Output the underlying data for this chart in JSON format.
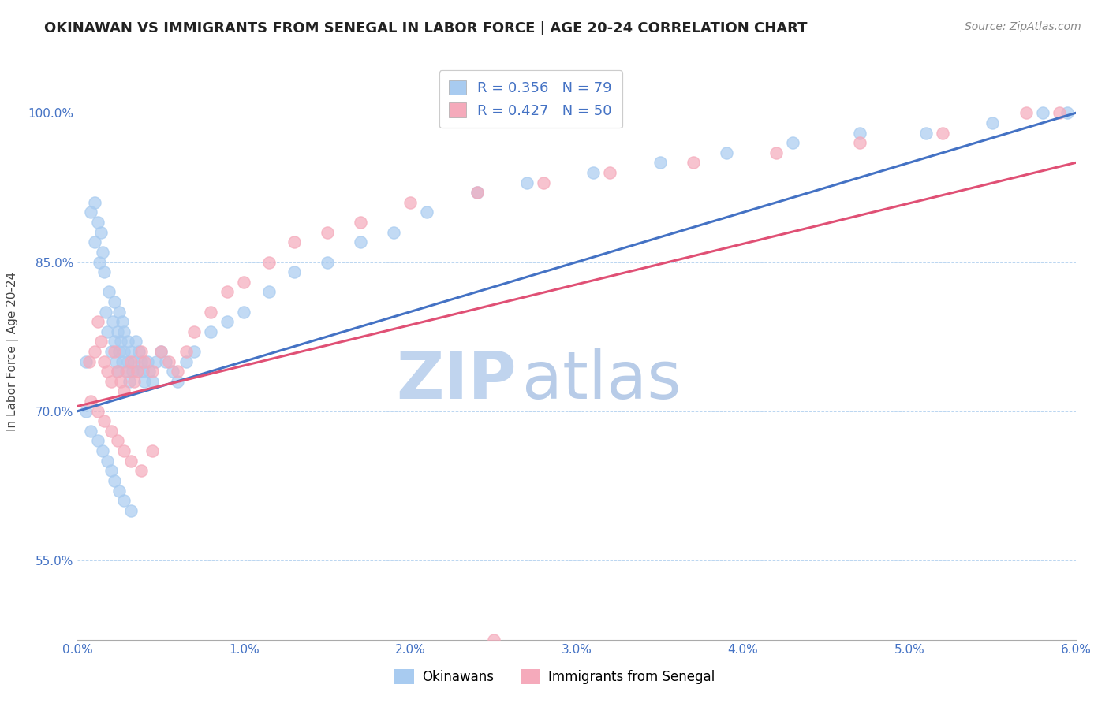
{
  "title": "OKINAWAN VS IMMIGRANTS FROM SENEGAL IN LABOR FORCE | AGE 20-24 CORRELATION CHART",
  "source": "Source: ZipAtlas.com",
  "ylabel": "In Labor Force | Age 20-24",
  "xlim": [
    0.0,
    6.0
  ],
  "ylim": [
    47.0,
    105.0
  ],
  "xlabel_vals": [
    0.0,
    1.0,
    2.0,
    3.0,
    4.0,
    5.0,
    6.0
  ],
  "ylabel_vals": [
    55.0,
    70.0,
    85.0,
    100.0
  ],
  "blue_color": "#A8CBF0",
  "pink_color": "#F5AABB",
  "blue_line_color": "#4472C4",
  "pink_line_color": "#E05075",
  "legend_R_blue": "R = 0.356",
  "legend_N_blue": "N = 79",
  "legend_R_pink": "R = 0.427",
  "legend_N_pink": "N = 50",
  "legend_label_blue": "Okinawans",
  "legend_label_pink": "Immigrants from Senegal",
  "watermark_zip_color": "#C0D4EE",
  "watermark_atlas_color": "#B8CCE8",
  "blue_trend": [
    70.0,
    100.0
  ],
  "pink_trend": [
    70.5,
    95.0
  ],
  "blue_x": [
    0.05,
    0.08,
    0.1,
    0.1,
    0.12,
    0.13,
    0.14,
    0.15,
    0.16,
    0.17,
    0.18,
    0.19,
    0.2,
    0.21,
    0.22,
    0.22,
    0.23,
    0.24,
    0.24,
    0.25,
    0.25,
    0.26,
    0.27,
    0.27,
    0.28,
    0.28,
    0.29,
    0.3,
    0.3,
    0.31,
    0.32,
    0.33,
    0.34,
    0.35,
    0.36,
    0.37,
    0.38,
    0.39,
    0.4,
    0.42,
    0.43,
    0.45,
    0.47,
    0.5,
    0.53,
    0.57,
    0.6,
    0.65,
    0.7,
    0.8,
    0.9,
    1.0,
    1.15,
    1.3,
    1.5,
    1.7,
    1.9,
    2.1,
    2.4,
    2.7,
    3.1,
    3.5,
    3.9,
    4.3,
    4.7,
    5.1,
    5.5,
    5.8,
    5.95,
    0.05,
    0.08,
    0.12,
    0.15,
    0.18,
    0.2,
    0.22,
    0.25,
    0.28,
    0.32
  ],
  "blue_y": [
    75.0,
    90.0,
    87.0,
    91.0,
    89.0,
    85.0,
    88.0,
    86.0,
    84.0,
    80.0,
    78.0,
    82.0,
    76.0,
    79.0,
    77.0,
    81.0,
    75.0,
    78.0,
    74.0,
    76.0,
    80.0,
    77.0,
    79.0,
    75.0,
    76.0,
    78.0,
    74.0,
    77.0,
    75.0,
    73.0,
    76.0,
    74.0,
    75.0,
    77.0,
    74.0,
    76.0,
    75.0,
    74.0,
    73.0,
    75.0,
    74.0,
    73.0,
    75.0,
    76.0,
    75.0,
    74.0,
    73.0,
    75.0,
    76.0,
    78.0,
    79.0,
    80.0,
    82.0,
    84.0,
    85.0,
    87.0,
    88.0,
    90.0,
    92.0,
    93.0,
    94.0,
    95.0,
    96.0,
    97.0,
    98.0,
    98.0,
    99.0,
    100.0,
    100.0,
    70.0,
    68.0,
    67.0,
    66.0,
    65.0,
    64.0,
    63.0,
    62.0,
    61.0,
    60.0
  ],
  "pink_x": [
    0.07,
    0.1,
    0.12,
    0.14,
    0.16,
    0.18,
    0.2,
    0.22,
    0.24,
    0.26,
    0.28,
    0.3,
    0.32,
    0.34,
    0.36,
    0.38,
    0.4,
    0.45,
    0.5,
    0.55,
    0.6,
    0.65,
    0.7,
    0.8,
    0.9,
    1.0,
    1.15,
    1.3,
    1.5,
    1.7,
    2.0,
    2.4,
    2.8,
    3.2,
    3.7,
    4.2,
    4.7,
    5.2,
    5.7,
    5.9,
    0.08,
    0.12,
    0.16,
    0.2,
    0.24,
    0.28,
    0.32,
    0.38,
    0.45,
    2.5
  ],
  "pink_y": [
    75.0,
    76.0,
    79.0,
    77.0,
    75.0,
    74.0,
    73.0,
    76.0,
    74.0,
    73.0,
    72.0,
    74.0,
    75.0,
    73.0,
    74.0,
    76.0,
    75.0,
    74.0,
    76.0,
    75.0,
    74.0,
    76.0,
    78.0,
    80.0,
    82.0,
    83.0,
    85.0,
    87.0,
    88.0,
    89.0,
    91.0,
    92.0,
    93.0,
    94.0,
    95.0,
    96.0,
    97.0,
    98.0,
    100.0,
    100.0,
    71.0,
    70.0,
    69.0,
    68.0,
    67.0,
    66.0,
    65.0,
    64.0,
    66.0,
    47.0
  ]
}
